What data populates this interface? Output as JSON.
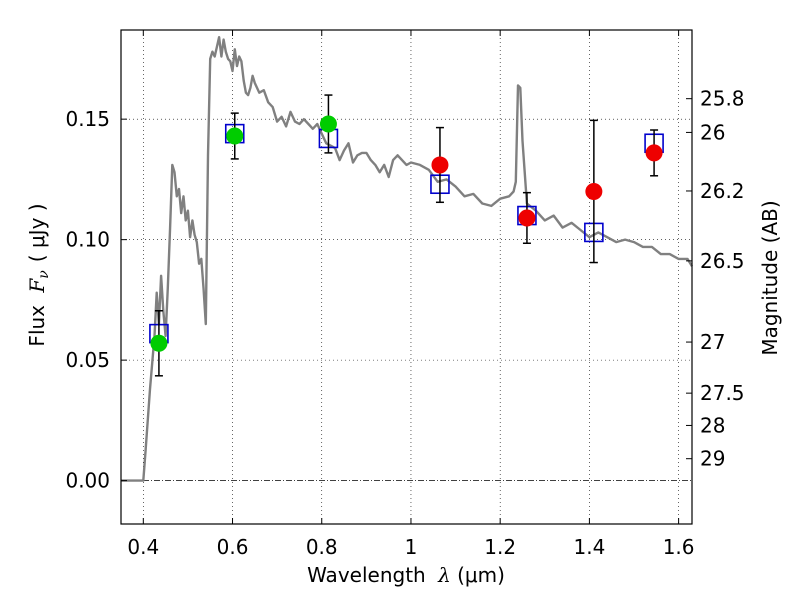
{
  "chart_data": {
    "type": "scatter",
    "xlabel": {
      "text": "Wavelength",
      "sym": "λ",
      "unit": "(μm)"
    },
    "ylabel": {
      "text": "Flux",
      "sym": "F",
      "sub": "ν",
      "unit": "( μJy )"
    },
    "y2label": "Magnitude (AB)",
    "xlim": [
      0.35,
      1.63
    ],
    "ylim": [
      -0.018,
      0.187
    ],
    "grid": "dotted",
    "zero_line": "dash-dot",
    "x_ticks": [
      {
        "v": 0.4,
        "label": "0.4"
      },
      {
        "v": 0.6,
        "label": "0.6"
      },
      {
        "v": 0.8,
        "label": "0.8"
      },
      {
        "v": 1.0,
        "label": "1"
      },
      {
        "v": 1.2,
        "label": "1.2"
      },
      {
        "v": 1.4,
        "label": "1.4"
      },
      {
        "v": 1.6,
        "label": "1.6"
      }
    ],
    "y_ticks": [
      {
        "v": 0.0,
        "label": "0.00"
      },
      {
        "v": 0.05,
        "label": "0.05"
      },
      {
        "v": 0.1,
        "label": "0.10"
      },
      {
        "v": 0.15,
        "label": "0.15"
      }
    ],
    "mag_ticks": [
      {
        "flux": 0.1585,
        "label": "25.8"
      },
      {
        "flux": 0.1445,
        "label": "26"
      },
      {
        "flux": 0.1202,
        "label": "26.2"
      },
      {
        "flux": 0.0912,
        "label": "26.5"
      },
      {
        "flux": 0.0575,
        "label": "27"
      },
      {
        "flux": 0.0363,
        "label": "27.5"
      },
      {
        "flux": 0.0229,
        "label": "28"
      },
      {
        "flux": 0.0091,
        "label": "29"
      }
    ],
    "series": [
      {
        "kind": "line",
        "color": "#808080",
        "x": [
          0.35,
          0.4,
          0.405,
          0.415,
          0.425,
          0.43,
          0.435,
          0.44,
          0.445,
          0.45,
          0.455,
          0.46,
          0.465,
          0.47,
          0.475,
          0.48,
          0.485,
          0.49,
          0.495,
          0.5,
          0.505,
          0.51,
          0.515,
          0.52,
          0.525,
          0.53,
          0.535,
          0.54,
          0.545,
          0.55,
          0.555,
          0.56,
          0.565,
          0.57,
          0.575,
          0.58,
          0.585,
          0.59,
          0.595,
          0.6,
          0.605,
          0.61,
          0.615,
          0.62,
          0.625,
          0.63,
          0.635,
          0.64,
          0.645,
          0.65,
          0.66,
          0.67,
          0.68,
          0.69,
          0.7,
          0.71,
          0.72,
          0.73,
          0.74,
          0.75,
          0.76,
          0.77,
          0.78,
          0.79,
          0.8,
          0.81,
          0.82,
          0.83,
          0.84,
          0.85,
          0.86,
          0.87,
          0.88,
          0.89,
          0.9,
          0.91,
          0.92,
          0.93,
          0.94,
          0.95,
          0.96,
          0.97,
          0.98,
          0.99,
          1.0,
          1.02,
          1.04,
          1.06,
          1.08,
          1.1,
          1.12,
          1.14,
          1.16,
          1.18,
          1.2,
          1.22,
          1.23,
          1.235,
          1.24,
          1.245,
          1.25,
          1.26,
          1.28,
          1.3,
          1.32,
          1.34,
          1.36,
          1.38,
          1.4,
          1.42,
          1.44,
          1.46,
          1.48,
          1.5,
          1.52,
          1.54,
          1.56,
          1.58,
          1.6,
          1.62,
          1.63
        ],
        "y": [
          0.0,
          0.0,
          0.012,
          0.038,
          0.06,
          0.078,
          0.065,
          0.085,
          0.07,
          0.06,
          0.08,
          0.105,
          0.131,
          0.128,
          0.118,
          0.121,
          0.111,
          0.118,
          0.108,
          0.112,
          0.101,
          0.108,
          0.102,
          0.099,
          0.09,
          0.092,
          0.08,
          0.065,
          0.135,
          0.175,
          0.178,
          0.176,
          0.18,
          0.184,
          0.176,
          0.183,
          0.178,
          0.175,
          0.174,
          0.17,
          0.179,
          0.172,
          0.176,
          0.174,
          0.166,
          0.161,
          0.16,
          0.163,
          0.168,
          0.165,
          0.161,
          0.162,
          0.157,
          0.155,
          0.149,
          0.151,
          0.147,
          0.153,
          0.149,
          0.148,
          0.15,
          0.148,
          0.146,
          0.148,
          0.144,
          0.14,
          0.139,
          0.138,
          0.133,
          0.137,
          0.14,
          0.132,
          0.135,
          0.136,
          0.136,
          0.133,
          0.131,
          0.128,
          0.131,
          0.126,
          0.133,
          0.135,
          0.133,
          0.131,
          0.132,
          0.131,
          0.129,
          0.124,
          0.125,
          0.122,
          0.118,
          0.119,
          0.115,
          0.114,
          0.117,
          0.118,
          0.12,
          0.124,
          0.164,
          0.163,
          0.141,
          0.115,
          0.112,
          0.108,
          0.11,
          0.105,
          0.107,
          0.104,
          0.101,
          0.103,
          0.101,
          0.099,
          0.1,
          0.099,
          0.097,
          0.097,
          0.094,
          0.094,
          0.092,
          0.092,
          0.089
        ]
      },
      {
        "kind": "model_box",
        "color": "#0000cc",
        "x": [
          0.435,
          0.605,
          0.815,
          1.065,
          1.26,
          1.41,
          1.545
        ],
        "y": [
          0.061,
          0.144,
          0.142,
          0.123,
          0.11,
          0.103,
          0.14
        ]
      },
      {
        "kind": "points",
        "color": "#00cc00",
        "x": [
          0.435,
          0.605,
          0.815
        ],
        "y": [
          0.057,
          0.143,
          0.148
        ],
        "yerr": [
          0.0135,
          0.0095,
          0.012
        ]
      },
      {
        "kind": "points",
        "color": "#ee0000",
        "x": [
          1.065,
          1.26,
          1.41,
          1.545
        ],
        "y": [
          0.131,
          0.109,
          0.12,
          0.136
        ],
        "yerr": [
          0.0155,
          0.0105,
          0.0295,
          0.0095
        ]
      }
    ]
  }
}
